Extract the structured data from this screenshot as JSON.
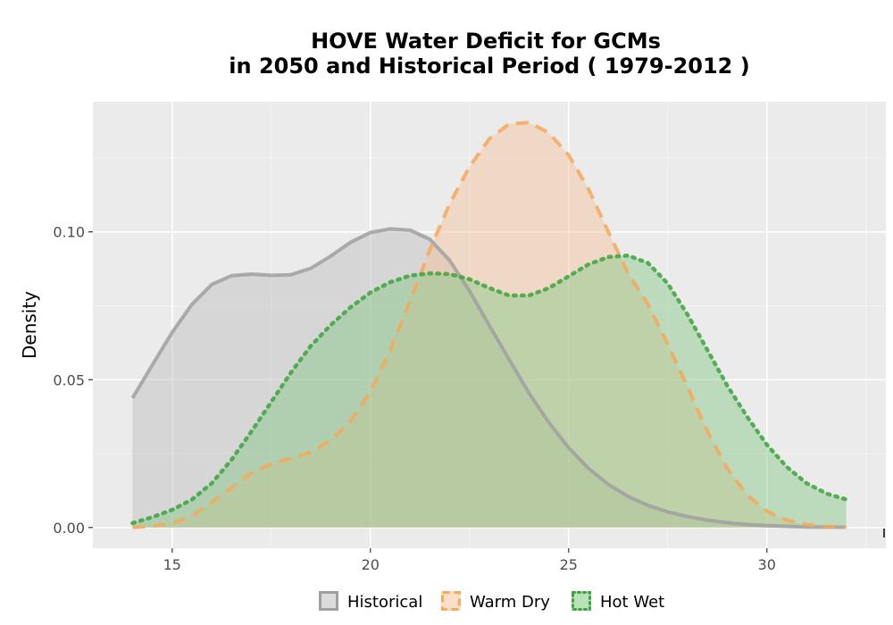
{
  "chart_data": {
    "type": "area",
    "title_line1": "HOVE  Water Deficit for GCMs",
    "title_line2": "in 2050 and Historical Period ( 1979-2012 )",
    "xlabel": "",
    "ylabel": "Density",
    "xlim": [
      13.0,
      33.0
    ],
    "ylim": [
      -0.007,
      0.144
    ],
    "x_ticks": [
      {
        "value": 15,
        "label": "15"
      },
      {
        "value": 20,
        "label": "20"
      },
      {
        "value": 25,
        "label": "25"
      },
      {
        "value": 30,
        "label": "30"
      }
    ],
    "y_ticks": [
      {
        "value": 0.0,
        "label": "0.00"
      },
      {
        "value": 0.05,
        "label": "0.05"
      },
      {
        "value": 0.1,
        "label": "0.10"
      }
    ],
    "grid": true,
    "legend_position": "bottom",
    "series": [
      {
        "name": "Historical",
        "line_style": "solid",
        "line_color": "#a0a0a0",
        "fill_color": "#bdbdbd",
        "x": [
          14.0,
          14.5,
          15.0,
          15.5,
          16.0,
          16.5,
          17.0,
          17.5,
          18.0,
          18.5,
          19.0,
          19.5,
          20.0,
          20.5,
          21.0,
          21.5,
          22.0,
          22.5,
          23.0,
          23.5,
          24.0,
          24.5,
          25.0,
          25.5,
          26.0,
          26.5,
          27.0,
          27.5,
          28.0,
          28.5,
          29.0,
          29.5,
          30.0,
          31.0,
          32.0
        ],
        "y": [
          0.0438,
          0.055,
          0.066,
          0.0755,
          0.0822,
          0.0852,
          0.0857,
          0.0853,
          0.0855,
          0.0877,
          0.0918,
          0.0965,
          0.0998,
          0.101,
          0.1006,
          0.0975,
          0.0903,
          0.08,
          0.0683,
          0.0568,
          0.0455,
          0.0355,
          0.027,
          0.02,
          0.0146,
          0.0105,
          0.0075,
          0.0053,
          0.0037,
          0.0025,
          0.0016,
          0.001,
          0.0006,
          0.0002,
          0.0001
        ]
      },
      {
        "name": "Warm Dry",
        "line_style": "dashed",
        "line_color": "#f5a95a",
        "fill_color": "#f5c39a",
        "x": [
          14.0,
          14.5,
          15.0,
          15.5,
          16.0,
          16.5,
          17.0,
          17.5,
          18.0,
          18.5,
          19.0,
          19.5,
          20.0,
          20.5,
          21.0,
          21.5,
          22.0,
          22.5,
          23.0,
          23.5,
          24.0,
          24.5,
          25.0,
          25.5,
          26.0,
          26.5,
          27.0,
          27.5,
          28.0,
          28.5,
          29.0,
          29.5,
          30.0,
          30.5,
          31.0,
          31.5,
          32.0
        ],
        "y": [
          0.0,
          0.0005,
          0.0015,
          0.004,
          0.0085,
          0.0135,
          0.0185,
          0.0215,
          0.0235,
          0.0255,
          0.0295,
          0.036,
          0.046,
          0.06,
          0.0765,
          0.094,
          0.1095,
          0.122,
          0.1315,
          0.1365,
          0.137,
          0.1335,
          0.126,
          0.1145,
          0.1,
          0.086,
          0.0755,
          0.062,
          0.0475,
          0.0325,
          0.02,
          0.011,
          0.0055,
          0.0025,
          0.001,
          0.0003,
          0.0001
        ]
      },
      {
        "name": "Hot Wet",
        "line_style": "dotted",
        "line_color": "#3ea33e",
        "fill_color": "#82c882",
        "x": [
          14.0,
          14.5,
          15.0,
          15.5,
          16.0,
          16.5,
          17.0,
          17.5,
          18.0,
          18.5,
          19.0,
          19.5,
          20.0,
          20.5,
          21.0,
          21.5,
          22.0,
          22.5,
          23.0,
          23.5,
          24.0,
          24.5,
          25.0,
          25.5,
          26.0,
          26.5,
          27.0,
          27.5,
          28.0,
          28.5,
          29.0,
          29.5,
          30.0,
          30.5,
          31.0,
          31.5,
          32.0
        ],
        "y": [
          0.0015,
          0.0035,
          0.006,
          0.0095,
          0.015,
          0.023,
          0.0325,
          0.0425,
          0.0525,
          0.0615,
          0.0685,
          0.0745,
          0.0795,
          0.083,
          0.0852,
          0.086,
          0.0857,
          0.084,
          0.081,
          0.0785,
          0.0785,
          0.081,
          0.085,
          0.089,
          0.0915,
          0.092,
          0.0895,
          0.0825,
          0.072,
          0.06,
          0.048,
          0.0375,
          0.028,
          0.0205,
          0.015,
          0.0115,
          0.0095
        ]
      }
    ]
  }
}
